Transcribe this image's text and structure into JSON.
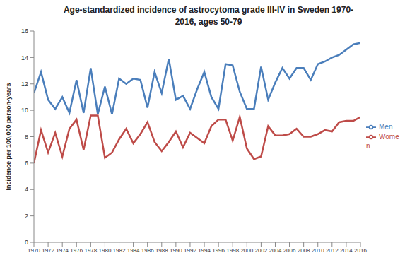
{
  "chart_data": {
    "type": "line",
    "title": "Age-standardized incidence of astrocytoma grade III-IV in Sweden 1970-2016, ages 50-79",
    "y_label": "Incidence per 100,000 person-years",
    "x": [
      1970,
      1971,
      1972,
      1973,
      1974,
      1975,
      1976,
      1977,
      1978,
      1979,
      1980,
      1981,
      1982,
      1983,
      1984,
      1985,
      1986,
      1987,
      1988,
      1989,
      1990,
      1991,
      1992,
      1993,
      1994,
      1995,
      1996,
      1997,
      1998,
      1999,
      2000,
      2001,
      2002,
      2003,
      2004,
      2005,
      2006,
      2007,
      2008,
      2009,
      2010,
      2011,
      2012,
      2013,
      2014,
      2015,
      2016
    ],
    "series": [
      {
        "name": "Men",
        "color": "#4a7ebb",
        "values": [
          11.3,
          12.9,
          10.8,
          10.1,
          11.0,
          9.8,
          12.3,
          9.8,
          13.2,
          9.7,
          11.8,
          9.7,
          12.4,
          12.0,
          12.4,
          12.3,
          10.2,
          12.9,
          11.3,
          13.9,
          10.8,
          11.1,
          10.1,
          11.6,
          12.9,
          11.0,
          10.1,
          13.5,
          13.4,
          11.4,
          10.1,
          10.1,
          13.3,
          10.8,
          12.1,
          13.2,
          12.4,
          13.2,
          13.2,
          12.3,
          13.5,
          13.7,
          14.0,
          14.2,
          14.6,
          15.0,
          15.1
        ]
      },
      {
        "name": "Women",
        "color": "#be4b48",
        "values": [
          6.0,
          8.5,
          6.8,
          8.3,
          6.5,
          8.6,
          9.3,
          7.0,
          9.6,
          9.6,
          6.4,
          6.8,
          7.8,
          8.6,
          7.5,
          8.2,
          9.1,
          7.6,
          6.9,
          7.6,
          8.4,
          7.2,
          8.3,
          7.9,
          7.5,
          8.8,
          9.3,
          9.3,
          7.7,
          9.5,
          7.1,
          6.3,
          6.5,
          8.8,
          8.1,
          8.1,
          8.2,
          8.6,
          8.0,
          8.0,
          8.2,
          8.5,
          8.4,
          9.1,
          9.2,
          9.2,
          9.5
        ]
      }
    ],
    "xlim": [
      1970,
      2016
    ],
    "xticks": [
      1970,
      1972,
      1974,
      1976,
      1978,
      1980,
      1982,
      1984,
      1986,
      1988,
      1990,
      1992,
      1994,
      1996,
      1998,
      2000,
      2002,
      2004,
      2006,
      2008,
      2010,
      2012,
      2014,
      2016
    ],
    "ylim": [
      0,
      16
    ],
    "yticks": [
      0,
      2,
      4,
      6,
      8,
      10,
      12,
      14,
      16
    ],
    "grid": false,
    "legend": "right",
    "marker": "none"
  }
}
